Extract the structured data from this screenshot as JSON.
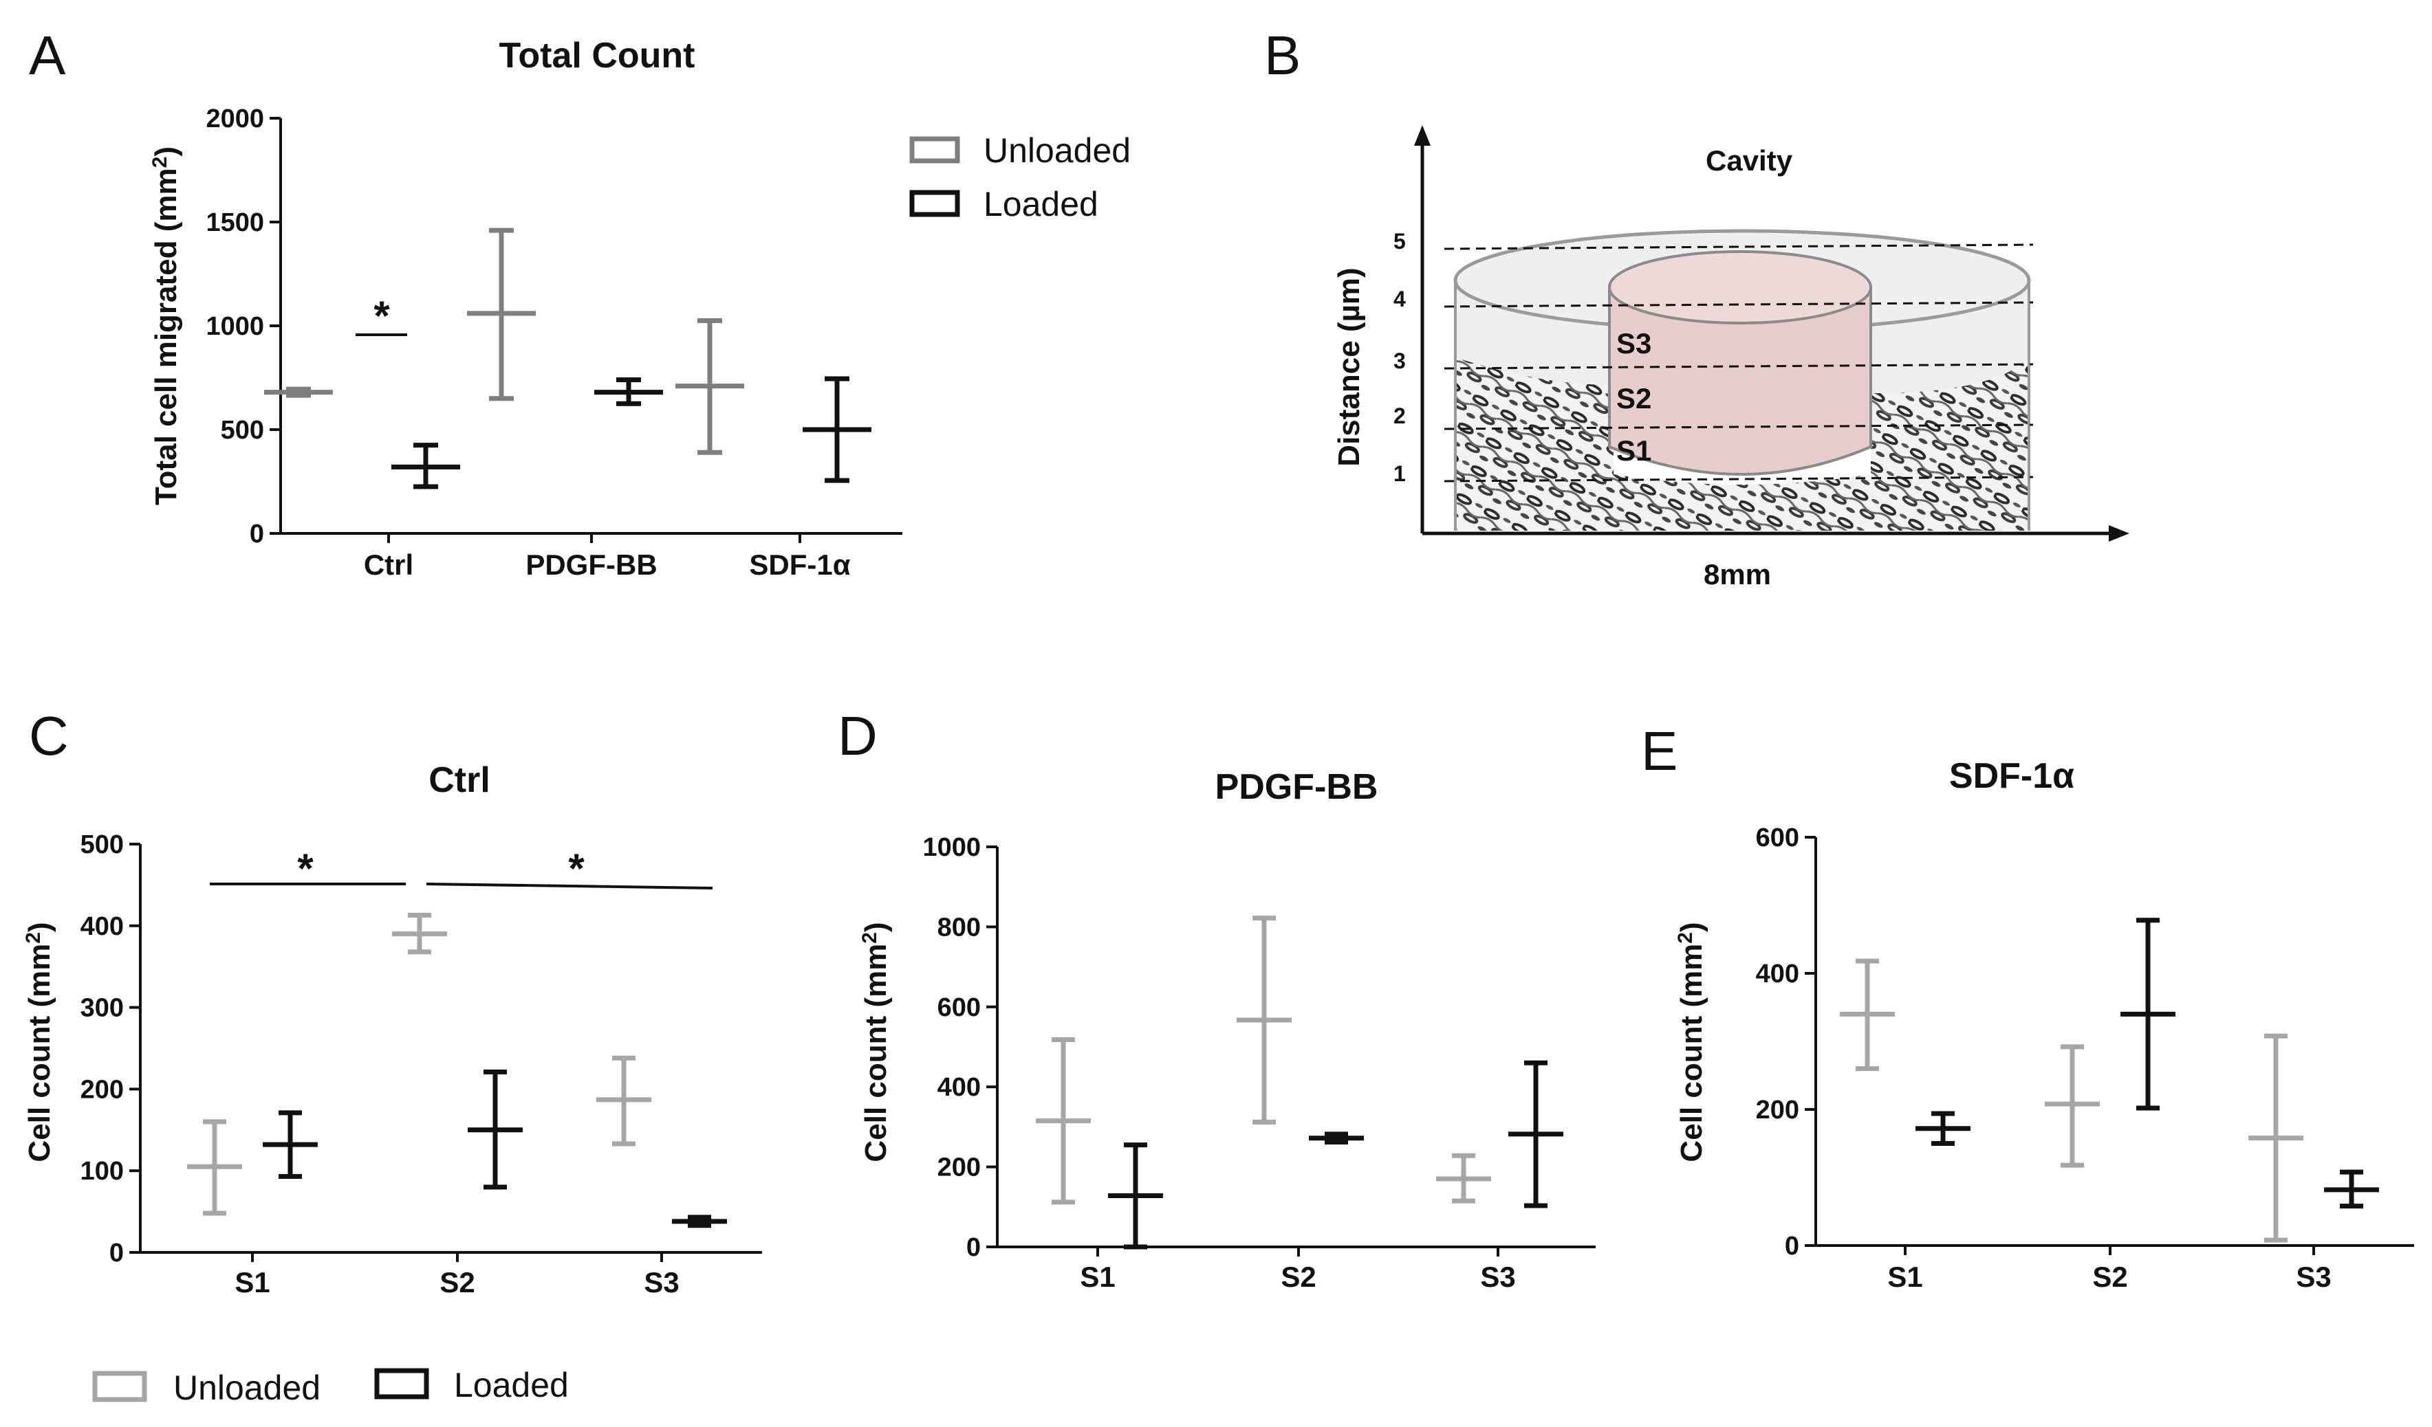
{
  "figure": {
    "panel_labels": {
      "A": "A",
      "B": "B",
      "C": "C",
      "D": "D",
      "E": "E"
    },
    "legend_top": {
      "unloaded": "Unloaded",
      "loaded": "Loaded"
    },
    "legend_bottom": {
      "unloaded": "Unloaded",
      "loaded": "Loaded"
    },
    "colors": {
      "unloaded_a": "#7f7f7f",
      "unloaded_light": "#a6a6a6",
      "loaded": "#111111"
    },
    "schematic": {
      "title": "Cavity",
      "ylabel": "Distance (µm)",
      "xlabel": "8mm",
      "levels": [
        "1",
        "2",
        "3",
        "4",
        "5"
      ],
      "sections": [
        "S1",
        "S2",
        "S3"
      ]
    }
  },
  "chart_data": [
    {
      "panel": "A",
      "type": "scatter",
      "title": "Total Count",
      "xlabel": "",
      "ylabel": "Total cell migrated (mm2)",
      "categories": [
        "Ctrl",
        "PDGF-BB",
        "SDF-1α"
      ],
      "yticks": [
        "0",
        "500",
        "1000",
        "1500",
        "2000"
      ],
      "ylim": [
        0,
        2000
      ],
      "series": [
        {
          "name": "Unloaded",
          "mean": [
            680,
            1060,
            710
          ],
          "low": [
            665,
            650,
            390
          ],
          "high": [
            695,
            1460,
            1025
          ]
        },
        {
          "name": "Loaded",
          "mean": [
            320,
            680,
            500
          ],
          "low": [
            225,
            625,
            255
          ],
          "high": [
            425,
            740,
            745
          ]
        }
      ],
      "significance": [
        {
          "label": "*",
          "between": "Ctrl Unloaded vs Ctrl Loaded"
        }
      ]
    },
    {
      "panel": "C",
      "type": "scatter",
      "title": "Ctrl",
      "xlabel": "",
      "ylabel": "Cell count (mm2)",
      "categories": [
        "S1",
        "S2",
        "S3"
      ],
      "yticks": [
        "0",
        "100",
        "200",
        "300",
        "400",
        "500"
      ],
      "ylim": [
        0,
        500
      ],
      "series": [
        {
          "name": "Unloaded",
          "mean": [
            105,
            390,
            187
          ],
          "low": [
            48,
            368,
            133
          ],
          "high": [
            160,
            413,
            238
          ]
        },
        {
          "name": "Loaded",
          "mean": [
            132,
            150,
            38
          ],
          "low": [
            93,
            80,
            33
          ],
          "high": [
            171,
            221,
            43
          ]
        }
      ],
      "significance": [
        {
          "label": "*",
          "between": "S1 vs S2"
        },
        {
          "label": "*",
          "between": "S2 vs S3"
        }
      ]
    },
    {
      "panel": "D",
      "type": "scatter",
      "title": "PDGF-BB",
      "xlabel": "",
      "ylabel": "Cell count (mm2)",
      "categories": [
        "S1",
        "S2",
        "S3"
      ],
      "yticks": [
        "0",
        "200",
        "400",
        "600",
        "800",
        "1000"
      ],
      "ylim": [
        0,
        1000
      ],
      "series": [
        {
          "name": "Unloaded",
          "mean": [
            315,
            567,
            170
          ],
          "low": [
            112,
            312,
            115
          ],
          "high": [
            518,
            822,
            228
          ]
        },
        {
          "name": "Loaded",
          "mean": [
            128,
            272,
            282
          ],
          "low": [
            0,
            262,
            103
          ],
          "high": [
            255,
            282,
            460
          ]
        }
      ],
      "significance": []
    },
    {
      "panel": "E",
      "type": "scatter",
      "title": "SDF-1α",
      "xlabel": "",
      "ylabel": "Cell count (mm2)",
      "categories": [
        "S1",
        "S2",
        "S3"
      ],
      "yticks": [
        "0",
        "200",
        "400",
        "600"
      ],
      "ylim": [
        0,
        600
      ],
      "series": [
        {
          "name": "Unloaded",
          "mean": [
            340,
            208,
            158
          ],
          "low": [
            260,
            118,
            8
          ],
          "high": [
            418,
            292,
            308
          ]
        },
        {
          "name": "Loaded",
          "mean": [
            172,
            340,
            82
          ],
          "low": [
            150,
            202,
            58
          ],
          "high": [
            194,
            478,
            108
          ]
        }
      ],
      "significance": []
    }
  ]
}
